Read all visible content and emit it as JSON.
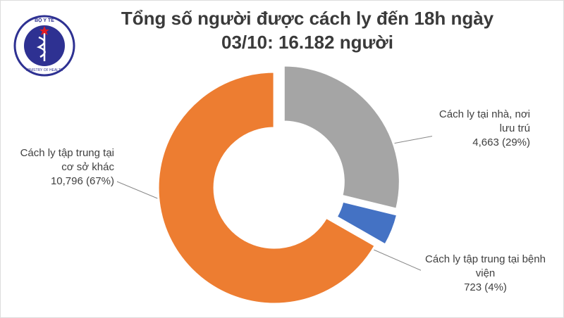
{
  "logo": {
    "top": "BỘ Y TẾ",
    "bottom": "MINISTRY OF HEALTH"
  },
  "chart_data": {
    "type": "donut",
    "title": "Tổng số người được cách ly đến 18h ngày 03/10: 16.182 người",
    "categories": [
      "Cách ly tại nhà, nơi lưu trú",
      "Cách ly tập trung tại bệnh viện",
      "Cách ly tập trung tại cơ sở khác"
    ],
    "values": [
      4663,
      723,
      10796
    ],
    "value_labels": [
      "4,663 (29%)",
      "723 (4%)",
      "10,796 (67%)"
    ],
    "colors": [
      "#a5a5a5",
      "#4472c4",
      "#ed7d31"
    ]
  }
}
